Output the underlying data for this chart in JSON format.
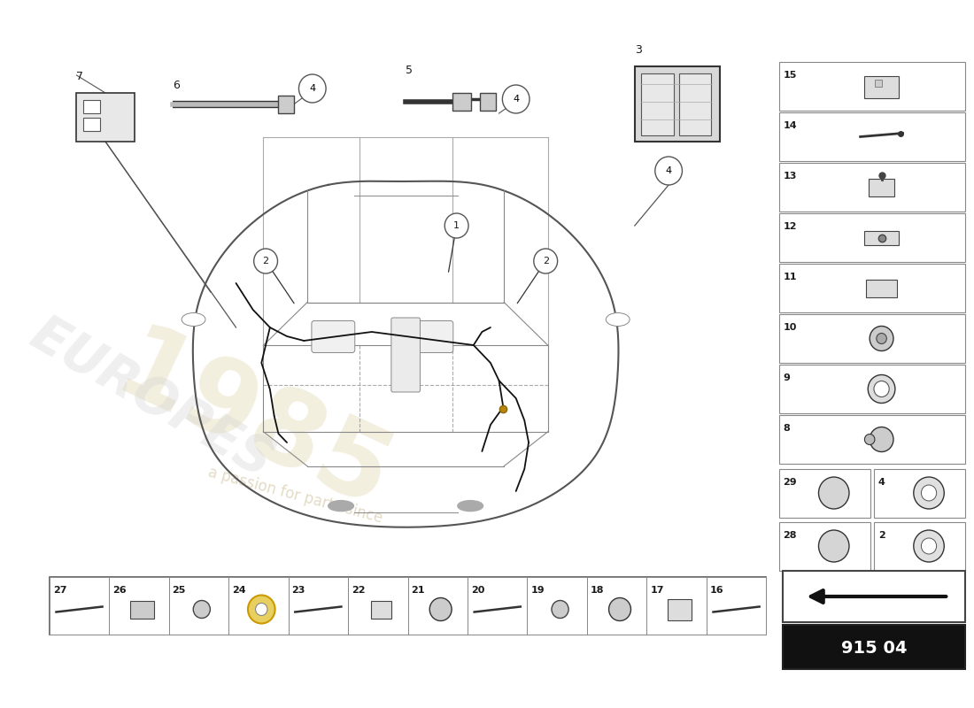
{
  "page_code": "915 04",
  "background_color": "#ffffff",
  "text_color": "#1a1a1a",
  "car_color": "#555555",
  "wire_color": "#111111",
  "watermark_1985": "#e8dfc0",
  "watermark_text": "#d4c8a8",
  "brand_color": "#b8b0a0",
  "bottom_items": [
    27,
    26,
    25,
    24,
    23,
    22,
    21,
    20,
    19,
    18,
    17,
    16
  ],
  "right_single_items": [
    {
      "num": 15,
      "row": 0
    },
    {
      "num": 14,
      "row": 1
    },
    {
      "num": 13,
      "row": 2
    },
    {
      "num": 12,
      "row": 3
    },
    {
      "num": 11,
      "row": 4
    },
    {
      "num": 10,
      "row": 5
    },
    {
      "num": 9,
      "row": 6
    },
    {
      "num": 8,
      "row": 7
    }
  ],
  "right_double_items": [
    [
      {
        "num": 29
      },
      {
        "num": 4
      }
    ],
    [
      {
        "num": 28
      },
      {
        "num": 2
      }
    ]
  ]
}
